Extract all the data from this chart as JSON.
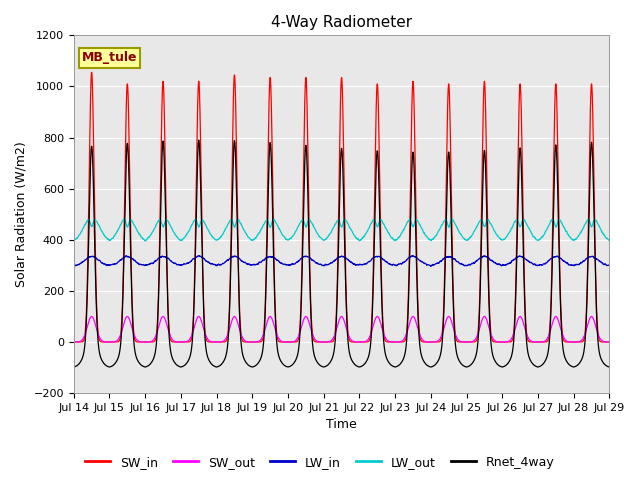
{
  "title": "4-Way Radiometer",
  "xlabel": "Time",
  "ylabel": "Solar Radiation (W/m2)",
  "ylim": [
    -200,
    1200
  ],
  "colors": {
    "SW_in": "#ff0000",
    "SW_out": "#ff00ff",
    "LW_in": "#0000cc",
    "LW_out": "#00cccc",
    "Rnet_4way": "#000000"
  },
  "legend_label": "MB_tule",
  "plot_bg": "#e8e8e8",
  "xtick_labels": [
    "Jul 14",
    "Jul 15",
    "Jul 16",
    "Jul 17",
    "Jul 18",
    "Jul 19",
    "Jul 20",
    "Jul 21",
    "Jul 22",
    "Jul 23",
    "Jul 24",
    "Jul 25",
    "Jul 26",
    "Jul 27",
    "Jul 28",
    "Jul 29"
  ],
  "n_days": 15,
  "sw_in_peaks": [
    1055,
    1010,
    1020,
    1020,
    1045,
    1035,
    1035,
    1035,
    1010,
    1020,
    1010,
    1020,
    1010,
    1010,
    1010
  ],
  "sw_out_base": 100,
  "lw_in_base": 300,
  "lw_out_base": 390,
  "lw_out_day": 490,
  "rnet_peak": 790,
  "rnet_night": -100,
  "title_fontsize": 11,
  "label_fontsize": 9,
  "tick_fontsize": 8,
  "legend_fontsize": 9
}
